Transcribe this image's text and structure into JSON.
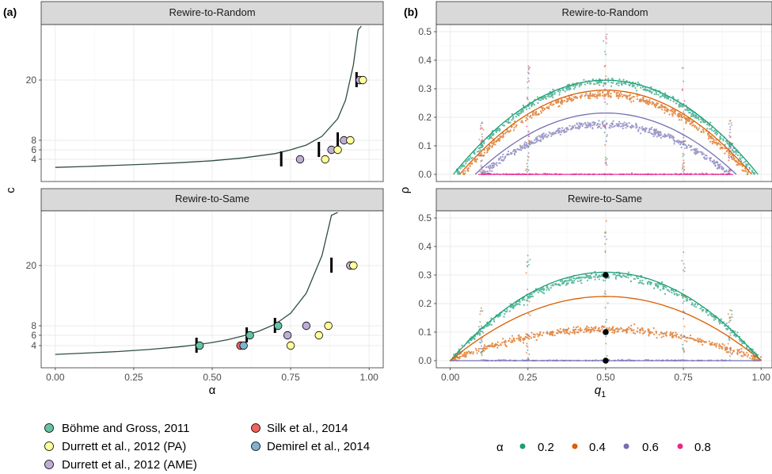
{
  "panel_a": {
    "label": "(a)",
    "facets": [
      "Rewire-to-Random",
      "Rewire-to-Same"
    ],
    "xlabel": "α",
    "ylabel": "c",
    "x_ticks": [
      "0.00",
      "0.25",
      "0.50",
      "0.75",
      "1.00"
    ],
    "y_ticks": [
      "4",
      "6",
      "8",
      "20"
    ]
  },
  "panel_b": {
    "label": "(b)",
    "facets": [
      "Rewire-to-Random",
      "Rewire-to-Same"
    ],
    "xlabel": "q",
    "xlabel_sub": "1",
    "ylabel": "ρ",
    "x_ticks": [
      "0.00",
      "0.25",
      "0.50",
      "0.75",
      "1.00"
    ],
    "y_ticks": [
      "0.0",
      "0.1",
      "0.2",
      "0.3",
      "0.4",
      "0.5"
    ]
  },
  "legend_sources": {
    "items": [
      {
        "label": "Böhme and Gross, 2011",
        "color": "#66c2a5"
      },
      {
        "label": "Durrett et al., 2012 (PA)",
        "color": "#ffff99"
      },
      {
        "label": "Durrett et al., 2012 (AME)",
        "color": "#beaed4"
      },
      {
        "label": "Silk et al., 2014",
        "color": "#f0645a"
      },
      {
        "label": "Demirel et al., 2014",
        "color": "#80b1d3"
      }
    ]
  },
  "legend_alpha": {
    "title": "α",
    "items": [
      {
        "label": "0.2",
        "color": "#1b9e77"
      },
      {
        "label": "0.4",
        "color": "#d95f02"
      },
      {
        "label": "0.6",
        "color": "#7570b3"
      },
      {
        "label": "0.8",
        "color": "#e7298a"
      }
    ]
  },
  "chart_data": [
    {
      "type": "scatter",
      "panel": "a",
      "facet": "Rewire-to-Random",
      "xlabel": "α",
      "ylabel": "c",
      "xlim": [
        0,
        1
      ],
      "curve": {
        "x": [
          0,
          0.1,
          0.2,
          0.3,
          0.4,
          0.5,
          0.6,
          0.7,
          0.75,
          0.8,
          0.85,
          0.9,
          0.925,
          0.95,
          0.965,
          0.975
        ],
        "y": [
          2.3,
          2.5,
          2.75,
          3.0,
          3.3,
          3.7,
          4.3,
          5.2,
          6.0,
          7.0,
          8.8,
          12.3,
          16,
          23,
          30,
          38
        ]
      },
      "bars": [
        {
          "x": 0.72,
          "y": 4.0
        },
        {
          "x": 0.84,
          "y": 6.0
        },
        {
          "x": 0.9,
          "y": 8.0
        },
        {
          "x": 0.96,
          "y": 20
        }
      ],
      "points": [
        {
          "source": "Durrett et al., 2012 (AME)",
          "x": 0.78,
          "y": 4
        },
        {
          "source": "Durrett et al., 2012 (AME)",
          "x": 0.88,
          "y": 6
        },
        {
          "source": "Durrett et al., 2012 (AME)",
          "x": 0.92,
          "y": 8
        },
        {
          "source": "Durrett et al., 2012 (AME)",
          "x": 0.97,
          "y": 20
        },
        {
          "source": "Durrett et al., 2012 (PA)",
          "x": 0.86,
          "y": 4
        },
        {
          "source": "Durrett et al., 2012 (PA)",
          "x": 0.9,
          "y": 6
        },
        {
          "source": "Durrett et al., 2012 (PA)",
          "x": 0.94,
          "y": 8
        },
        {
          "source": "Durrett et al., 2012 (PA)",
          "x": 0.98,
          "y": 20
        }
      ]
    },
    {
      "type": "scatter",
      "panel": "a",
      "facet": "Rewire-to-Same",
      "xlabel": "α",
      "ylabel": "c",
      "xlim": [
        0,
        1
      ],
      "curve": {
        "x": [
          0,
          0.1,
          0.2,
          0.3,
          0.4,
          0.45,
          0.5,
          0.55,
          0.6,
          0.65,
          0.7,
          0.75,
          0.8,
          0.85,
          0.88,
          0.9
        ],
        "y": [
          2.3,
          2.55,
          2.85,
          3.25,
          3.8,
          4.15,
          4.6,
          5.15,
          5.9,
          6.9,
          8.3,
          10.5,
          14.5,
          22,
          30,
          38
        ]
      },
      "bars": [
        {
          "x": 0.45,
          "y": 4.0
        },
        {
          "x": 0.61,
          "y": 6.0
        },
        {
          "x": 0.7,
          "y": 8.0
        },
        {
          "x": 0.88,
          "y": 20
        }
      ],
      "points": [
        {
          "source": "Böhme and Gross, 2011",
          "x": 0.46,
          "y": 4
        },
        {
          "source": "Böhme and Gross, 2011",
          "x": 0.62,
          "y": 6
        },
        {
          "source": "Böhme and Gross, 2011",
          "x": 0.71,
          "y": 8
        },
        {
          "source": "Silk et al., 2014",
          "x": 0.59,
          "y": 4
        },
        {
          "source": "Demirel et al., 2014",
          "x": 0.6,
          "y": 4
        },
        {
          "source": "Durrett et al., 2012 (AME)",
          "x": 0.74,
          "y": 6
        },
        {
          "source": "Durrett et al., 2012 (AME)",
          "x": 0.8,
          "y": 8
        },
        {
          "source": "Durrett et al., 2012 (AME)",
          "x": 0.94,
          "y": 20
        },
        {
          "source": "Durrett et al., 2012 (PA)",
          "x": 0.75,
          "y": 4
        },
        {
          "source": "Durrett et al., 2012 (PA)",
          "x": 0.84,
          "y": 6
        },
        {
          "source": "Durrett et al., 2012 (PA)",
          "x": 0.87,
          "y": 8
        },
        {
          "source": "Durrett et al., 2012 (PA)",
          "x": 0.95,
          "y": 20
        }
      ]
    },
    {
      "type": "scatter",
      "panel": "b",
      "facet": "Rewire-to-Random",
      "xlabel": "q1",
      "ylabel": "ρ",
      "xlim": [
        0,
        1
      ],
      "ylim": [
        0,
        0.5
      ],
      "series": [
        {
          "name": "0.2",
          "color": "#1b9e77",
          "curve_peak": 0.33,
          "curve_range": [
            0.01,
            0.99
          ],
          "scatter_peak": 0.325,
          "scatter_range": [
            0.02,
            0.98
          ]
        },
        {
          "name": "0.4",
          "color": "#d95f02",
          "curve_peak": 0.295,
          "curve_range": [
            0.03,
            0.97
          ],
          "scatter_peak": 0.28,
          "scatter_range": [
            0.04,
            0.96
          ]
        },
        {
          "name": "0.6",
          "color": "#7570b3",
          "curve_peak": 0.215,
          "curve_range": [
            0.08,
            0.92
          ],
          "scatter_peak": 0.175,
          "scatter_range": [
            0.1,
            0.9
          ]
        },
        {
          "name": "0.8",
          "color": "#e7298a",
          "curve_peak": 0.0,
          "curve_range": [
            0.09,
            0.91
          ],
          "scatter_peak": 0.0,
          "scatter_range": [
            0.1,
            0.9
          ]
        }
      ]
    },
    {
      "type": "scatter",
      "panel": "b",
      "facet": "Rewire-to-Same",
      "xlabel": "q1",
      "ylabel": "ρ",
      "xlim": [
        0,
        1
      ],
      "ylim": [
        0,
        0.5
      ],
      "series": [
        {
          "name": "0.2",
          "color": "#1b9e77",
          "curve_peak": 0.31,
          "curve_range": [
            0.0,
            1.0
          ],
          "scatter_peak": 0.297,
          "scatter_range": [
            0.0,
            1.0
          ]
        },
        {
          "name": "0.4",
          "color": "#d95f02",
          "curve_peak": 0.225,
          "curve_range": [
            0.0,
            1.0
          ],
          "scatter_peak": 0.11,
          "scatter_range": [
            0.0,
            1.0
          ]
        },
        {
          "name": "0.6",
          "color": "#7570b3",
          "curve_peak": 0.0,
          "curve_range": [
            0.0,
            1.0
          ],
          "scatter_peak": 0.0,
          "scatter_range": [
            0.1,
            0.9
          ]
        }
      ],
      "black_points": [
        {
          "x": 0.5,
          "y": 0.3
        },
        {
          "x": 0.5,
          "y": 0.1
        },
        {
          "x": 0.5,
          "y": 0.0
        }
      ]
    }
  ]
}
